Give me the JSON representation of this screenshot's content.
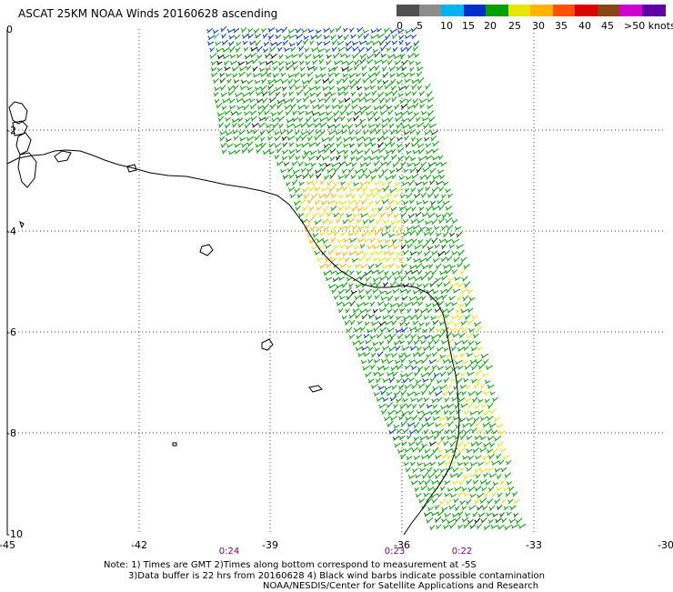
{
  "title": "ASCAT 25KM NOAA Winds 20160628 ascending",
  "color_scale": {
    "colors": [
      "#505050",
      "#8c8c8c",
      "#00b4f0",
      "#0030c8",
      "#00a000",
      "#e6e600",
      "#ffb400",
      "#ff5000",
      "#dc0000",
      "#8b4513",
      "#d000d0",
      "#6000a0"
    ],
    "labels": [
      "0",
      "5",
      "10",
      "15",
      "20",
      "25",
      "30",
      "35",
      "40",
      "45",
      ">50 knots"
    ]
  },
  "map": {
    "lon_labels": [
      "-45",
      "-42",
      "-39",
      "-36",
      "-33",
      "-30"
    ],
    "lat_labels": [
      "0",
      "-2",
      "-4",
      "-6",
      "-8",
      "-10"
    ],
    "time_labels": [
      "0:24",
      "0:23",
      "0:22"
    ]
  },
  "notes": {
    "line1": "Note: 1) Times are GMT 2)Times along bottom correspond to measurement at -5S",
    "line2": "3)Data buffer is 22 hrs from 20160628 4) Black wind barbs indicate possible contamination",
    "line3": "NOAA/NESDIS/Center for Satellite Applications and Research"
  }
}
